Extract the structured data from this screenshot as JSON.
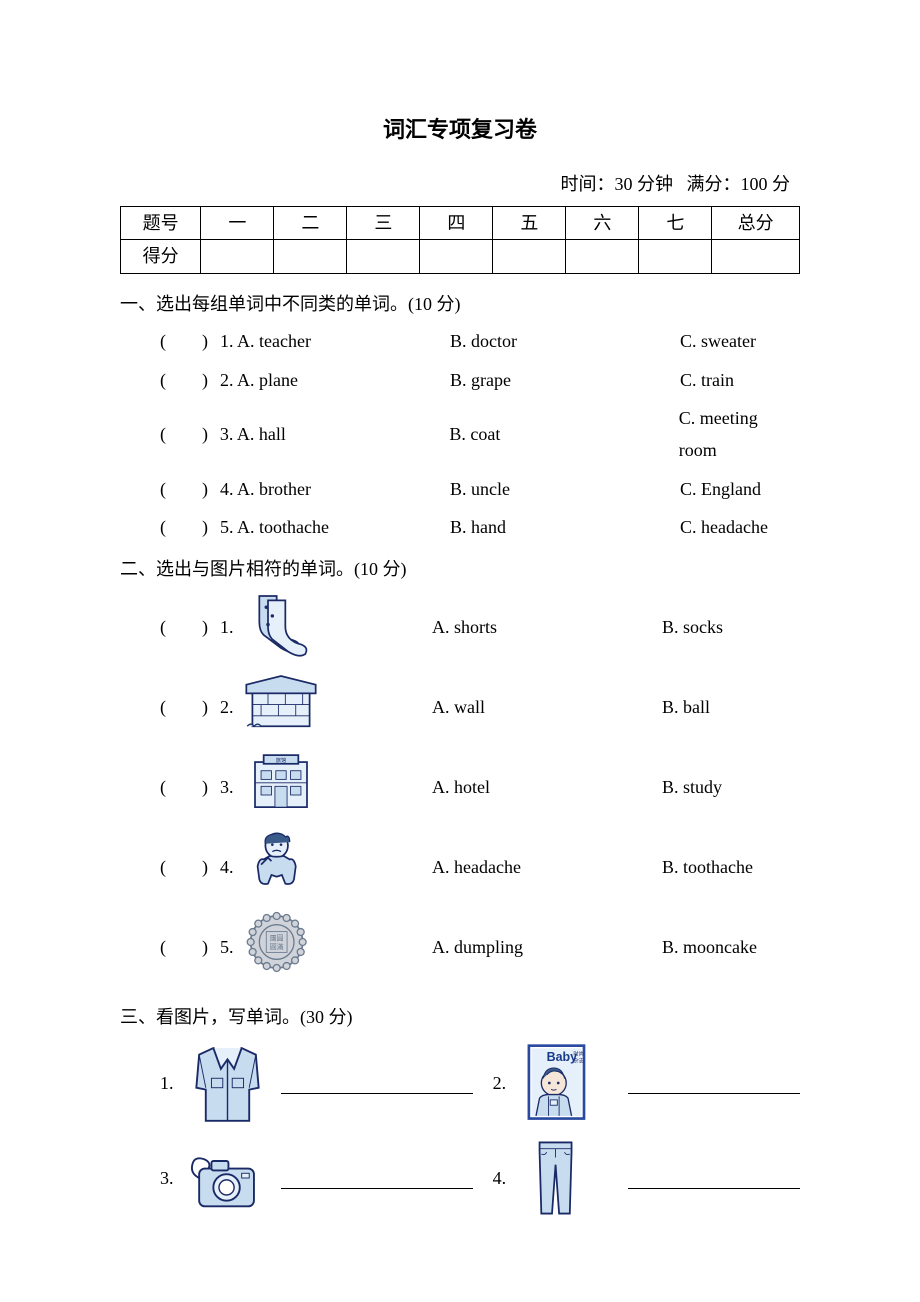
{
  "title": "词汇专项复习卷",
  "meta": {
    "time": "时间：30 分钟",
    "full": "满分：100 分"
  },
  "table": {
    "row1": [
      "题号",
      "一",
      "二",
      "三",
      "四",
      "五",
      "六",
      "七",
      "总分"
    ],
    "row2_label": "得分"
  },
  "section1": {
    "head": "一、选出每组单词中不同类的单词。(10 分)",
    "items": [
      {
        "n": "1.",
        "a": "A. teacher",
        "b": "B. doctor",
        "c": "C. sweater"
      },
      {
        "n": "2.",
        "a": "A. plane",
        "b": "B. grape",
        "c": "C. train"
      },
      {
        "n": "3.",
        "a": "A. hall",
        "b": "B. coat",
        "c": "C. meeting room"
      },
      {
        "n": "4.",
        "a": "A. brother",
        "b": "B. uncle",
        "c": "C. England"
      },
      {
        "n": "5.",
        "a": "A. toothache",
        "b": "B. hand",
        "c": "C. headache"
      }
    ]
  },
  "section2": {
    "head": "二、选出与图片相符的单词。(10 分)",
    "items": [
      {
        "n": "1.",
        "icon": "socks",
        "a": "A. shorts",
        "b": "B. socks"
      },
      {
        "n": "2.",
        "icon": "wall",
        "a": "A. wall",
        "b": "B. ball"
      },
      {
        "n": "3.",
        "icon": "hotel",
        "a": "A. hotel",
        "b": "B. study"
      },
      {
        "n": "4.",
        "icon": "toothache",
        "a": "A. headache",
        "b": "B. toothache"
      },
      {
        "n": "5.",
        "icon": "mooncake",
        "a": "A. dumpling",
        "b": "B. mooncake"
      }
    ]
  },
  "section3": {
    "head": "三、看图片，写单词。(30 分)",
    "items": [
      {
        "n": "1.",
        "icon": "shirt"
      },
      {
        "n": "2.",
        "icon": "magazine",
        "mag_title": "Baby",
        "mag_sub": "时尚杂志"
      },
      {
        "n": "3.",
        "icon": "camera"
      },
      {
        "n": "4.",
        "icon": "trousers"
      }
    ]
  },
  "colors": {
    "stroke": "#1a2a66",
    "fill": "#c8dcf0",
    "light": "#e6f0fa",
    "dark": "#3a5a8a",
    "mooncake": "#6b7a8f",
    "mag_border": "#2a4aa0",
    "mag_title": "#1a3a8a"
  }
}
